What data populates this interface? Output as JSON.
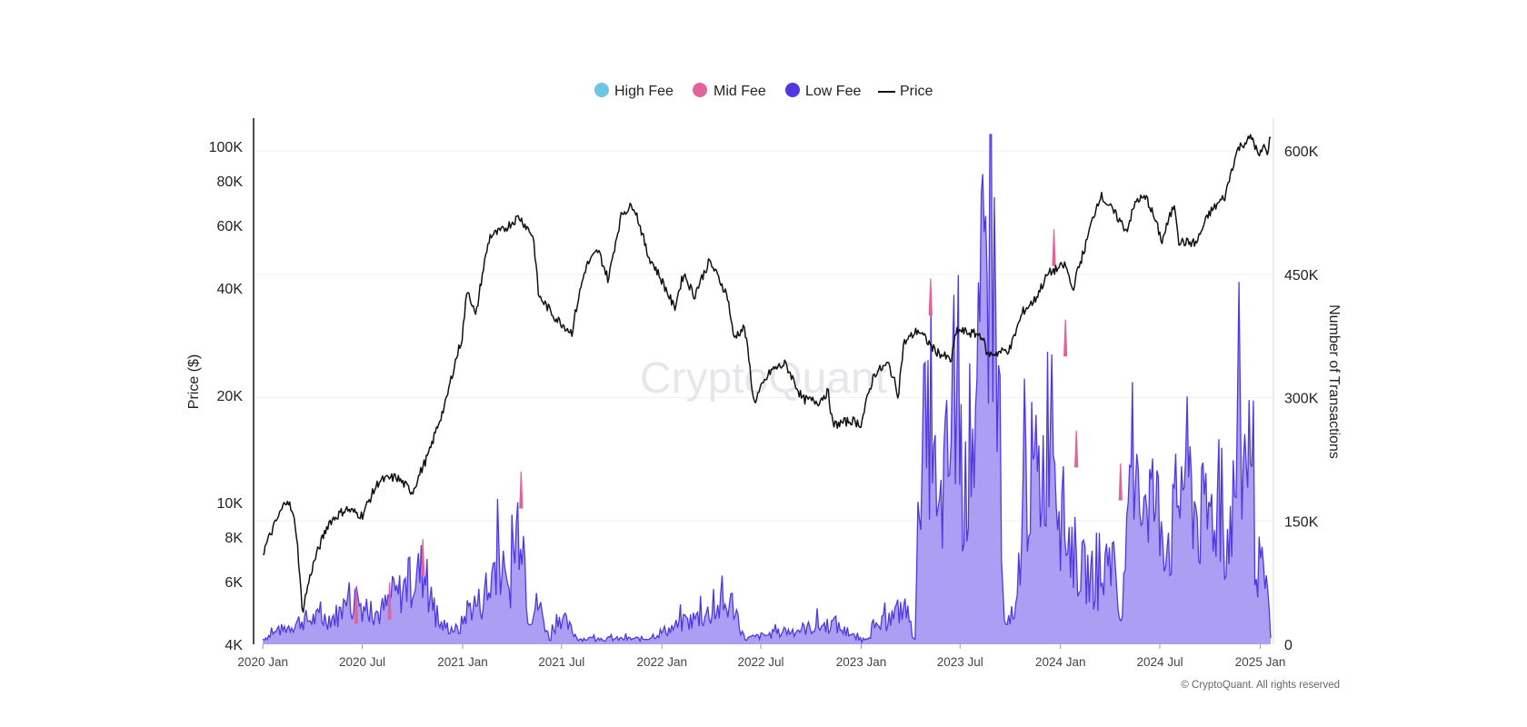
{
  "watermark": "CryptoQuant",
  "copyright": "© CryptoQuant. All rights reserved",
  "colors": {
    "high_fee": "#6cc6e6",
    "mid_fee": "#e0649a",
    "low_fee": "#5038e0",
    "low_fee_fill": "#a89af2",
    "price": "#111111",
    "grid": "#f0f0f0"
  },
  "chart_data": {
    "type": "area",
    "legend": [
      {
        "name": "High Fee",
        "color": "#6cc6e6",
        "marker": "circle"
      },
      {
        "name": "Mid Fee",
        "color": "#e0649a",
        "marker": "circle"
      },
      {
        "name": "Low Fee",
        "color": "#5038e0",
        "marker": "circle"
      },
      {
        "name": "Price",
        "color": "#111111",
        "marker": "line"
      }
    ],
    "legend_position": "top-center",
    "y_left": {
      "label": "Price ($)",
      "scale": "log",
      "range": [
        4000,
        120000
      ],
      "ticks": [
        {
          "value": 4000,
          "label": "4K"
        },
        {
          "value": 6000,
          "label": "6K"
        },
        {
          "value": 8000,
          "label": "8K"
        },
        {
          "value": 10000,
          "label": "10K"
        },
        {
          "value": 20000,
          "label": "20K"
        },
        {
          "value": 40000,
          "label": "40K"
        },
        {
          "value": 60000,
          "label": "60K"
        },
        {
          "value": 80000,
          "label": "80K"
        },
        {
          "value": 100000,
          "label": "100K"
        }
      ]
    },
    "y_right": {
      "label": "Number of Transactions",
      "scale": "linear",
      "range": [
        0,
        640000
      ],
      "ticks": [
        {
          "value": 0,
          "label": "0"
        },
        {
          "value": 150000,
          "label": "150K"
        },
        {
          "value": 300000,
          "label": "300K"
        },
        {
          "value": 450000,
          "label": "450K"
        },
        {
          "value": 600000,
          "label": "600K"
        }
      ]
    },
    "x_axis": {
      "range": [
        "2019-12-15",
        "2025-01-25"
      ],
      "ticks": [
        {
          "date": "2020-01-01",
          "label": "2020 Jan"
        },
        {
          "date": "2020-07-01",
          "label": "2020 Jul"
        },
        {
          "date": "2021-01-01",
          "label": "2021 Jan"
        },
        {
          "date": "2021-07-01",
          "label": "2021 Jul"
        },
        {
          "date": "2022-01-01",
          "label": "2022 Jan"
        },
        {
          "date": "2022-07-01",
          "label": "2022 Jul"
        },
        {
          "date": "2023-01-01",
          "label": "2023 Jan"
        },
        {
          "date": "2023-07-01",
          "label": "2023 Jul"
        },
        {
          "date": "2024-01-01",
          "label": "2024 Jan"
        },
        {
          "date": "2024-07-01",
          "label": "2024 Jul"
        },
        {
          "date": "2025-01-01",
          "label": "2025 Jan"
        }
      ]
    },
    "price_series": {
      "name": "Price",
      "points": [
        [
          "2020-01-01",
          7200
        ],
        [
          "2020-02-01",
          9300
        ],
        [
          "2020-02-15",
          10300
        ],
        [
          "2020-03-01",
          8600
        ],
        [
          "2020-03-13",
          4900
        ],
        [
          "2020-04-01",
          6600
        ],
        [
          "2020-05-01",
          8800
        ],
        [
          "2020-06-01",
          9600
        ],
        [
          "2020-07-01",
          9200
        ],
        [
          "2020-08-01",
          11500
        ],
        [
          "2020-09-01",
          11800
        ],
        [
          "2020-10-01",
          10700
        ],
        [
          "2020-11-01",
          13800
        ],
        [
          "2020-12-01",
          19000
        ],
        [
          "2020-12-31",
          29000
        ],
        [
          "2021-01-10",
          40000
        ],
        [
          "2021-01-25",
          33000
        ],
        [
          "2021-02-20",
          56000
        ],
        [
          "2021-03-15",
          58000
        ],
        [
          "2021-04-14",
          63500
        ],
        [
          "2021-05-10",
          56000
        ],
        [
          "2021-05-20",
          38000
        ],
        [
          "2021-06-20",
          33000
        ],
        [
          "2021-07-20",
          30000
        ],
        [
          "2021-08-15",
          46000
        ],
        [
          "2021-09-06",
          51000
        ],
        [
          "2021-09-25",
          42000
        ],
        [
          "2021-10-20",
          65000
        ],
        [
          "2021-11-10",
          68500
        ],
        [
          "2021-12-05",
          50000
        ],
        [
          "2022-01-24",
          35000
        ],
        [
          "2022-02-10",
          44000
        ],
        [
          "2022-03-01",
          38000
        ],
        [
          "2022-03-29",
          47500
        ],
        [
          "2022-05-01",
          38000
        ],
        [
          "2022-05-12",
          29000
        ],
        [
          "2022-06-01",
          31000
        ],
        [
          "2022-06-18",
          19000
        ],
        [
          "2022-07-20",
          23500
        ],
        [
          "2022-08-15",
          24500
        ],
        [
          "2022-09-15",
          19500
        ],
        [
          "2022-10-15",
          19200
        ],
        [
          "2022-11-01",
          20500
        ],
        [
          "2022-11-10",
          16500
        ],
        [
          "2022-12-15",
          17000
        ],
        [
          "2023-01-01",
          16600
        ],
        [
          "2023-01-25",
          23000
        ],
        [
          "2023-02-20",
          24500
        ],
        [
          "2023-03-10",
          20000
        ],
        [
          "2023-03-20",
          28000
        ],
        [
          "2023-04-15",
          30500
        ],
        [
          "2023-05-15",
          26800
        ],
        [
          "2023-06-15",
          25000
        ],
        [
          "2023-06-25",
          30500
        ],
        [
          "2023-07-15",
          30000
        ],
        [
          "2023-08-10",
          29500
        ],
        [
          "2023-08-20",
          26000
        ],
        [
          "2023-09-15",
          26500
        ],
        [
          "2023-10-01",
          27000
        ],
        [
          "2023-10-25",
          34500
        ],
        [
          "2023-11-15",
          37000
        ],
        [
          "2023-12-10",
          44000
        ],
        [
          "2024-01-10",
          46500
        ],
        [
          "2024-01-23",
          39500
        ],
        [
          "2024-02-15",
          52000
        ],
        [
          "2024-03-14",
          73000
        ],
        [
          "2024-04-15",
          63000
        ],
        [
          "2024-05-01",
          58000
        ],
        [
          "2024-05-20",
          71000
        ],
        [
          "2024-06-07",
          71500
        ],
        [
          "2024-07-05",
          54000
        ],
        [
          "2024-07-28",
          69000
        ],
        [
          "2024-08-05",
          54000
        ],
        [
          "2024-09-06",
          53500
        ],
        [
          "2024-09-30",
          65000
        ],
        [
          "2024-10-29",
          72500
        ],
        [
          "2024-11-13",
          90000
        ],
        [
          "2024-11-22",
          99000
        ],
        [
          "2024-12-05",
          103000
        ],
        [
          "2024-12-17",
          106000
        ],
        [
          "2024-12-30",
          92500
        ],
        [
          "2025-01-07",
          101000
        ],
        [
          "2025-01-13",
          94500
        ],
        [
          "2025-01-20",
          108000
        ]
      ]
    },
    "series": [
      {
        "name": "Low Fee",
        "points": [
          [
            "2020-01-01",
            8000
          ],
          [
            "2020-03-12",
            35000
          ],
          [
            "2020-05-10",
            40000
          ],
          [
            "2020-06-20",
            65000
          ],
          [
            "2020-08-01",
            45000
          ],
          [
            "2020-10-20",
            110000
          ],
          [
            "2020-11-15",
            30000
          ],
          [
            "2020-12-25",
            20000
          ],
          [
            "2021-01-12",
            55000
          ],
          [
            "2021-02-15",
            65000
          ],
          [
            "2021-03-05",
            140000
          ],
          [
            "2021-03-25",
            65000
          ],
          [
            "2021-04-18",
            220000
          ],
          [
            "2021-05-01",
            40000
          ],
          [
            "2021-05-20",
            60000
          ],
          [
            "2021-06-10",
            5000
          ],
          [
            "2021-06-25",
            45000
          ],
          [
            "2021-08-01",
            8000
          ],
          [
            "2021-12-01",
            8000
          ],
          [
            "2022-05-12",
            60000
          ],
          [
            "2022-06-01",
            8000
          ],
          [
            "2022-11-09",
            30000
          ],
          [
            "2023-01-01",
            5000
          ],
          [
            "2023-02-10",
            30000
          ],
          [
            "2023-03-20",
            55000
          ],
          [
            "2023-04-10",
            5000
          ],
          [
            "2023-04-22",
            360000
          ],
          [
            "2023-05-01",
            260000
          ],
          [
            "2023-05-10",
            380000
          ],
          [
            "2023-05-20",
            150000
          ],
          [
            "2023-06-05",
            250000
          ],
          [
            "2023-06-25",
            350000
          ],
          [
            "2023-07-10",
            200000
          ],
          [
            "2023-07-20",
            300000
          ],
          [
            "2023-08-01",
            330000
          ],
          [
            "2023-08-10",
            480000
          ],
          [
            "2023-08-25",
            600000
          ],
          [
            "2023-09-05",
            500000
          ],
          [
            "2023-09-15",
            120000
          ],
          [
            "2023-09-20",
            30000
          ],
          [
            "2023-10-10",
            30000
          ],
          [
            "2023-10-25",
            210000
          ],
          [
            "2023-11-05",
            250000
          ],
          [
            "2023-11-25",
            240000
          ],
          [
            "2023-12-05",
            280000
          ],
          [
            "2023-12-15",
            410000
          ],
          [
            "2023-12-30",
            200000
          ],
          [
            "2024-01-20",
            150000
          ],
          [
            "2024-02-05",
            110000
          ],
          [
            "2024-02-25",
            100000
          ],
          [
            "2024-03-15",
            80000
          ],
          [
            "2024-04-01",
            150000
          ],
          [
            "2024-04-20",
            30000
          ],
          [
            "2024-05-05",
            180000
          ],
          [
            "2024-06-05",
            240000
          ],
          [
            "2024-06-25",
            200000
          ],
          [
            "2024-07-20",
            150000
          ],
          [
            "2024-08-15",
            270000
          ],
          [
            "2024-09-10",
            180000
          ],
          [
            "2024-10-10",
            200000
          ],
          [
            "2024-11-01",
            150000
          ],
          [
            "2024-11-25",
            270000
          ],
          [
            "2024-12-10",
            280000
          ],
          [
            "2024-12-25",
            120000
          ],
          [
            "2025-01-05",
            100000
          ],
          [
            "2025-01-15",
            60000
          ],
          [
            "2025-01-20",
            10000
          ]
        ]
      },
      {
        "name": "Mid Fee",
        "spikes": [
          [
            "2020-06-20",
            70000
          ],
          [
            "2020-08-20",
            75000
          ],
          [
            "2020-10-20",
            128000
          ],
          [
            "2021-04-18",
            210000
          ],
          [
            "2023-05-08",
            445000
          ],
          [
            "2023-12-20",
            505000
          ],
          [
            "2024-01-10",
            395000
          ],
          [
            "2024-04-20",
            220000
          ],
          [
            "2024-01-30",
            260000
          ]
        ]
      },
      {
        "name": "High Fee",
        "points": []
      }
    ]
  }
}
